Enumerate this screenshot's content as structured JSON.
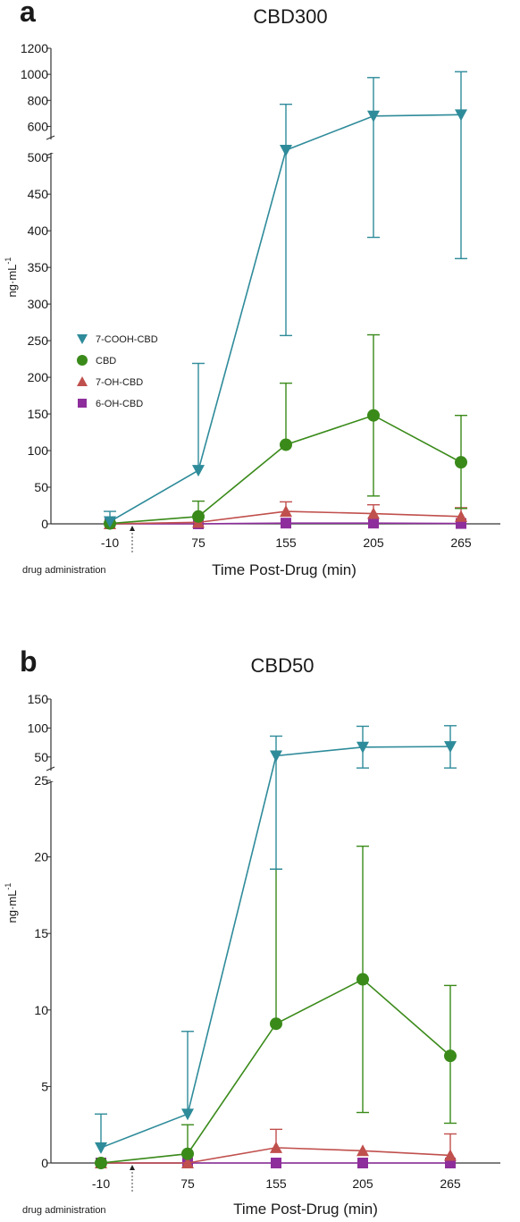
{
  "chart_data": [
    {
      "type": "line",
      "panel_letter": "a",
      "title": "CBD300",
      "xlabel": "Time Post-Drug (min)",
      "ylabel": "ng·mL",
      "ylabel_sup": "-1",
      "categories": [
        "-10",
        "75",
        "155",
        "205",
        "265"
      ],
      "annotation": "drug administration",
      "y_axis": {
        "broken": true,
        "lower_range": [
          0,
          510
        ],
        "upper_range": [
          500,
          1200
        ],
        "lower_ticks": [
          "0",
          "50",
          "100",
          "150",
          "200",
          "250",
          "300",
          "350",
          "400",
          "450",
          "500"
        ],
        "upper_ticks": [
          "600",
          "800",
          "1000",
          "1200"
        ]
      },
      "legend": {
        "placement": "middle-left"
      },
      "series": [
        {
          "name": "7-COOH-CBD",
          "color": "#2e8b9a",
          "marker": "triangle-down",
          "values": [
            3,
            73,
            510,
            680,
            690
          ],
          "err_up": [
            17,
            219,
            770,
            975,
            1020
          ],
          "err_down": [
            null,
            null,
            257,
            391,
            362
          ]
        },
        {
          "name": "CBD",
          "color": "#3a8a1a",
          "marker": "circle",
          "values": [
            0.5,
            10,
            108,
            148,
            84
          ],
          "err_up": [
            null,
            31,
            192,
            258,
            148
          ],
          "err_down": [
            null,
            null,
            null,
            38,
            21
          ]
        },
        {
          "name": "7-OH-CBD",
          "color": "#c0504d",
          "marker": "triangle-up",
          "values": [
            0,
            2,
            17,
            14,
            10
          ],
          "err_up": [
            null,
            null,
            30,
            26,
            22
          ],
          "err_down": [
            null,
            null,
            null,
            null,
            null
          ]
        },
        {
          "name": "6-OH-CBD",
          "color": "#8e2e9c",
          "marker": "square",
          "values": [
            0,
            0,
            1,
            1,
            0.5
          ],
          "err_up": [
            null,
            null,
            null,
            null,
            null
          ],
          "err_down": [
            null,
            null,
            null,
            null,
            null
          ]
        }
      ]
    },
    {
      "type": "line",
      "panel_letter": "b",
      "title": "CBD50",
      "xlabel": "Time Post-Drug (min)",
      "ylabel": "ng·mL",
      "ylabel_sup": "-1",
      "categories": [
        "-10",
        "75",
        "155",
        "205",
        "265"
      ],
      "annotation": "drug administration",
      "y_axis": {
        "broken": true,
        "lower_range": [
          0,
          25
        ],
        "upper_range": [
          25,
          150
        ],
        "lower_ticks": [
          "0",
          "5",
          "10",
          "15",
          "20",
          "25"
        ],
        "upper_ticks": [
          "50",
          "100",
          "150"
        ]
      },
      "series": [
        {
          "name": "7-COOH-CBD",
          "color": "#2e8b9a",
          "marker": "triangle-down",
          "values": [
            1,
            3.2,
            52,
            67,
            68
          ],
          "err_up": [
            3.2,
            8.6,
            86,
            103,
            104
          ],
          "err_down": [
            null,
            null,
            19.2,
            31,
            31
          ]
        },
        {
          "name": "CBD",
          "color": "#3a8a1a",
          "marker": "circle",
          "values": [
            0,
            0.6,
            9.1,
            12,
            7
          ],
          "err_up": [
            null,
            2.5,
            19.2,
            20.7,
            11.6
          ],
          "err_down": [
            null,
            null,
            null,
            3.3,
            2.6
          ]
        },
        {
          "name": "7-OH-CBD",
          "color": "#c0504d",
          "marker": "triangle-up",
          "values": [
            0,
            0,
            1.0,
            0.8,
            0.5
          ],
          "err_up": [
            null,
            null,
            2.2,
            null,
            1.9
          ],
          "err_down": [
            null,
            null,
            null,
            null,
            null
          ]
        },
        {
          "name": "6-OH-CBD",
          "color": "#8e2e9c",
          "marker": "square",
          "values": [
            0,
            0,
            0,
            0,
            0
          ],
          "err_up": [
            null,
            null,
            null,
            null,
            null
          ],
          "err_down": [
            null,
            null,
            null,
            null,
            null
          ]
        }
      ]
    }
  ]
}
